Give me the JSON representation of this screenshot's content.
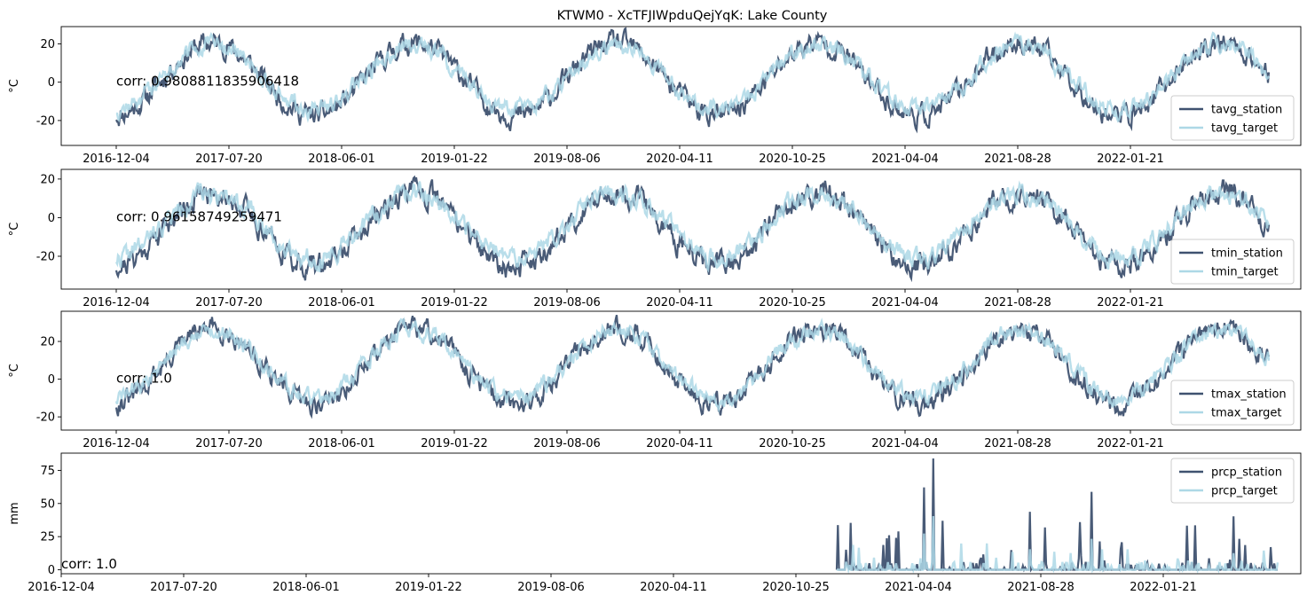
{
  "chart_data": {
    "title": "KTWM0 - XcTFJIWpduQejYqK: Lake County",
    "colors": {
      "station": "#3f5270",
      "target": "#add8e6",
      "axis": "#000000"
    },
    "panels": [
      {
        "type": "line",
        "ylabel": "°C",
        "ylim": [
          -33,
          29
        ],
        "yticks": [
          -20,
          0,
          20
        ],
        "xticks": [
          "2016-12-04",
          "2017-07-20",
          "2018-06-01",
          "2019-01-22",
          "2019-08-06",
          "2020-04-11",
          "2020-10-25",
          "2021-04-04",
          "2021-08-28",
          "2022-01-21"
        ],
        "corr_text": "corr: 0.9808811835906418",
        "legend_position": "lower-right",
        "series": [
          {
            "name": "tavg_station",
            "role": "station",
            "start_frac": 0.0,
            "mean": 1.5,
            "amp": 19,
            "noise": 5.5,
            "seed": 11
          },
          {
            "name": "tavg_target",
            "role": "target",
            "start_frac": 0.0,
            "mean": 2.5,
            "amp": 17,
            "noise": 4.5,
            "seed": 12
          }
        ]
      },
      {
        "type": "line",
        "ylabel": "°C",
        "ylim": [
          -37,
          25
        ],
        "yticks": [
          -20,
          0,
          20
        ],
        "xticks": [
          "2016-12-04",
          "2017-07-20",
          "2018-06-01",
          "2019-01-22",
          "2019-08-06",
          "2020-04-11",
          "2020-10-25",
          "2021-04-04",
          "2021-08-28",
          "2022-01-21"
        ],
        "corr_text": "corr: 0.96158749259471",
        "legend_position": "lower-right",
        "series": [
          {
            "name": "tmin_station",
            "role": "station",
            "start_frac": 0.0,
            "mean": -6,
            "amp": 19,
            "noise": 6,
            "seed": 21
          },
          {
            "name": "tmin_target",
            "role": "target",
            "start_frac": 0.0,
            "mean": -4,
            "amp": 17,
            "noise": 5,
            "seed": 22
          }
        ]
      },
      {
        "type": "line",
        "ylabel": "°C",
        "ylim": [
          -27,
          36
        ],
        "yticks": [
          -20,
          0,
          20
        ],
        "xticks": [
          "2016-12-04",
          "2017-07-20",
          "2018-06-01",
          "2019-01-22",
          "2019-08-06",
          "2020-04-11",
          "2020-10-25",
          "2021-04-04",
          "2021-08-28",
          "2022-01-21"
        ],
        "corr_text": "corr: 1.0",
        "legend_position": "lower-right",
        "series": [
          {
            "name": "tmax_station",
            "role": "station",
            "start_frac": 0.0,
            "mean": 7,
            "amp": 20,
            "noise": 5.5,
            "seed": 31
          },
          {
            "name": "tmax_target",
            "role": "target",
            "start_frac": 0.0,
            "mean": 8,
            "amp": 18,
            "noise": 4.5,
            "seed": 32
          }
        ]
      },
      {
        "type": "line",
        "ylabel": "mm",
        "ylim": [
          -3,
          88
        ],
        "yticks": [
          0,
          25,
          50,
          75
        ],
        "xticks": [
          "2016-12-04",
          "2017-07-20",
          "2018-06-01",
          "2019-01-22",
          "2019-08-06",
          "2020-04-11",
          "2020-10-25",
          "2021-04-04",
          "2021-08-28",
          "2022-01-21"
        ],
        "corr_text": "corr: 1.0",
        "legend_position": "upper-right",
        "series": [
          {
            "name": "prcp_station",
            "role": "station",
            "start_frac": 0.627,
            "max": 84,
            "seed": 41
          },
          {
            "name": "prcp_target",
            "role": "target",
            "start_frac": 0.627,
            "max": 45,
            "seed": 42
          }
        ]
      }
    ]
  }
}
